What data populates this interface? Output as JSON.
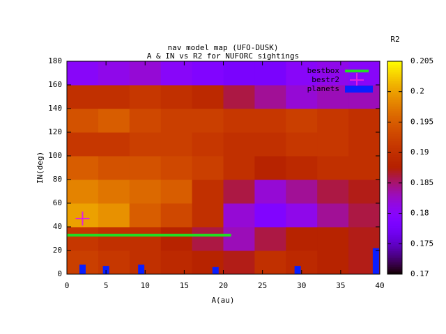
{
  "chart_data": {
    "type": "heatmap",
    "title": "nav model map (UFO-DUSK)",
    "subtitle": "A & IN vs R2 for NUFORC sightings",
    "xlabel": "A(au)",
    "ylabel": "IN(deg)",
    "xlim": [
      0,
      40
    ],
    "ylim": [
      0,
      180
    ],
    "xticks": [
      0,
      5,
      10,
      15,
      20,
      25,
      30,
      35,
      40
    ],
    "yticks": [
      0,
      20,
      40,
      60,
      80,
      100,
      120,
      140,
      160,
      180
    ],
    "x": [
      2,
      6,
      10,
      14,
      18,
      22,
      26,
      30,
      34,
      38
    ],
    "y": [
      10,
      30,
      50,
      70,
      90,
      110,
      130,
      150,
      170
    ],
    "z": [
      [
        0.192,
        0.191,
        0.19,
        0.189,
        0.188,
        0.187,
        0.19,
        0.189,
        0.188,
        0.187
      ],
      [
        0.191,
        0.19,
        0.19,
        0.188,
        0.186,
        0.183,
        0.186,
        0.188,
        0.188,
        0.187
      ],
      [
        0.2,
        0.199,
        0.195,
        0.193,
        0.19,
        0.182,
        0.179,
        0.181,
        0.184,
        0.186
      ],
      [
        0.198,
        0.197,
        0.196,
        0.195,
        0.19,
        0.186,
        0.182,
        0.184,
        0.186,
        0.187
      ],
      [
        0.195,
        0.194,
        0.194,
        0.193,
        0.192,
        0.19,
        0.188,
        0.189,
        0.19,
        0.19
      ],
      [
        0.191,
        0.191,
        0.192,
        0.192,
        0.191,
        0.19,
        0.19,
        0.191,
        0.191,
        0.19
      ],
      [
        0.194,
        0.195,
        0.193,
        0.192,
        0.192,
        0.191,
        0.191,
        0.192,
        0.191,
        0.19
      ],
      [
        0.19,
        0.19,
        0.191,
        0.19,
        0.189,
        0.186,
        0.184,
        0.182,
        0.183,
        0.183
      ],
      [
        0.18,
        0.181,
        0.182,
        0.18,
        0.179,
        0.178,
        0.178,
        0.18,
        0.181,
        0.18
      ]
    ],
    "colorbar": {
      "label": "R2",
      "lim": [
        0.17,
        0.205
      ],
      "ticks": [
        0.17,
        0.175,
        0.18,
        0.185,
        0.19,
        0.195,
        0.2,
        0.205
      ]
    },
    "legend": "top right",
    "series": [
      {
        "name": "bestbox",
        "type": "line",
        "color": "#22dd22",
        "x": [
          0,
          21
        ],
        "values": [
          33,
          33
        ]
      },
      {
        "name": "bestr2",
        "type": "point",
        "color": "#e020e0",
        "x": [
          2
        ],
        "values": [
          47
        ]
      },
      {
        "name": "planets",
        "type": "bar",
        "color": "#0a1eff",
        "x": [
          2,
          5,
          9.5,
          19,
          29.5,
          39.5
        ],
        "values": [
          8,
          7,
          8,
          6,
          7,
          22
        ]
      }
    ]
  }
}
